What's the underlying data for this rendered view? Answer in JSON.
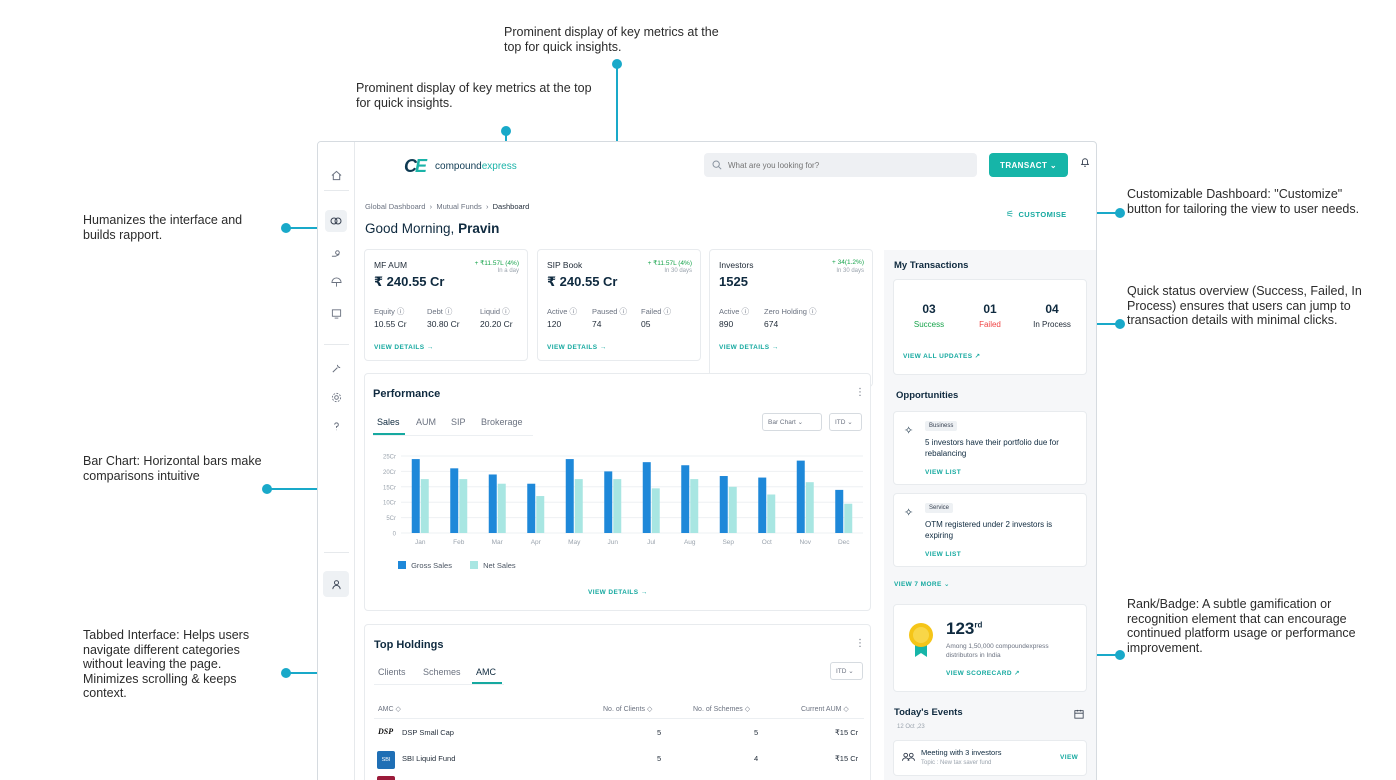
{
  "annotations": {
    "metrics_top": "Prominent display of key metrics at the top for quick insights.",
    "metrics_left": "Prominent display of key metrics at the top for quick insights.",
    "humanize": "Humanizes the interface and builds rapport.",
    "customizable": "Customizable Dashboard: \"Customize\" button for tailoring the view to user needs.",
    "quick_status": "Quick status overview (Success, Failed, In Process) ensures that users can jump to transaction details with minimal clicks.",
    "bar_chart": "Bar Chart: Horizontal bars make comparisons intuitive",
    "rank": "Rank/Badge: A subtle gamification or recognition element that can encourage continued platform usage or performance improvement.",
    "tabbed": "Tabbed Interface: Helps users navigate different categories without leaving the page. Minimizes scrolling & keeps context."
  },
  "header": {
    "brand_prefix": "compound",
    "brand_suffix": "express",
    "search_placeholder": "What are you looking for?",
    "transact_label": "TRANSACT ⌄"
  },
  "breadcrumb": [
    "Global Dashboard",
    "Mutual Funds",
    "Dashboard"
  ],
  "greeting": {
    "prefix": "Good Morning, ",
    "name": "Pravin"
  },
  "customise_label": "CUSTOMISE",
  "kpis": [
    {
      "label": "MF AUM",
      "value": "₹ 240.55 Cr",
      "change": "+ ₹11.57L (4%)",
      "period": "In a day",
      "subs": [
        {
          "label": "Equity ⓘ",
          "value": "10.55 Cr"
        },
        {
          "label": "Debt ⓘ",
          "value": "30.80 Cr"
        },
        {
          "label": "Liquid ⓘ",
          "value": "20.20 Cr"
        }
      ],
      "link": "VIEW DETAILS →"
    },
    {
      "label": "SIP Book",
      "value": "₹ 240.55 Cr",
      "change": "+ ₹11.57L (4%)",
      "period": "In 30 days",
      "subs": [
        {
          "label": "Active ⓘ",
          "value": "120"
        },
        {
          "label": "Paused ⓘ",
          "value": "74"
        },
        {
          "label": "Failed ⓘ",
          "value": "05"
        }
      ],
      "link": "VIEW DETAILS →"
    },
    {
      "label": "Investors",
      "value": "1525",
      "change": "+ 34(1.2%)",
      "period": "In 30 days",
      "subs": [
        {
          "label": "Active ⓘ",
          "value": "890"
        },
        {
          "label": "Zero Holding ⓘ",
          "value": "674"
        }
      ],
      "link": "VIEW DETAILS →"
    }
  ],
  "performance": {
    "title": "Performance",
    "tabs": [
      "Sales",
      "AUM",
      "SIP",
      "Brokerage"
    ],
    "chart_select": "Bar Chart ⌄",
    "period_select": "ITD ⌄",
    "link": "VIEW DETAILS →"
  },
  "chart_data": {
    "type": "bar",
    "categories": [
      "Jan",
      "Feb",
      "Mar",
      "Apr",
      "May",
      "Jun",
      "Jul",
      "Aug",
      "Sep",
      "Oct",
      "Nov",
      "Dec"
    ],
    "series": [
      {
        "name": "Gross Sales",
        "values": [
          24,
          21,
          19,
          16,
          24,
          20,
          23,
          22,
          18.5,
          18,
          23.5,
          14
        ]
      },
      {
        "name": "Net Sales",
        "values": [
          17.5,
          17.5,
          16,
          12,
          17.5,
          17.5,
          14.5,
          17.5,
          15,
          12.5,
          16.5,
          9.5
        ]
      }
    ],
    "yticks": [
      "0",
      "5Cr",
      "10Cr",
      "15Cr",
      "20Cr",
      "25Cr"
    ],
    "ylim": [
      0,
      25
    ],
    "colors": {
      "gross": "#1e88d9",
      "net": "#a8e6e2"
    },
    "legend_position": "bottom-left"
  },
  "holdings": {
    "title": "Top Holdings",
    "tabs": [
      "Clients",
      "Schemes",
      "AMC"
    ],
    "period_select": "ITD ⌄",
    "columns": [
      "AMC ◇",
      "No. of Clients ◇",
      "No. of Schemes ◇",
      "Current AUM ◇"
    ],
    "rows": [
      {
        "logo": "DSP",
        "name": "DSP Small Cap",
        "clients": "5",
        "schemes": "5",
        "aum": "₹15 Cr"
      },
      {
        "logo": "SBI",
        "name": "SBI Liquid Fund",
        "clients": "5",
        "schemes": "4",
        "aum": "₹15 Cr"
      }
    ]
  },
  "transactions": {
    "title": "My Transactions",
    "stats": [
      {
        "count": "03",
        "label": "Success",
        "color": "#16a34a"
      },
      {
        "count": "01",
        "label": "Failed",
        "color": "#ef4444"
      },
      {
        "count": "04",
        "label": "In Process",
        "color": "#1f2a37"
      }
    ],
    "link": "VIEW ALL UPDATES ↗"
  },
  "opportunities": {
    "title": "Opportunities",
    "items": [
      {
        "tag": "Business",
        "text": "5 investors have their portfolio due for rebalancing",
        "link": "VIEW LIST"
      },
      {
        "tag": "Service",
        "text": "OTM registered under 2 investors is expiring",
        "link": "VIEW LIST"
      }
    ],
    "more": "VIEW 7 MORE ⌄"
  },
  "rank": {
    "number": "123",
    "suffix": "rd",
    "text": "Among 1,50,000 compoundexpress distributors in India",
    "link": "VIEW SCORECARD ↗"
  },
  "events": {
    "title": "Today's Events",
    "date": "12 Oct ,23",
    "items": [
      {
        "title": "Meeting with 3 investors",
        "topic": "Topic : New tax saver fund",
        "link": "VIEW"
      }
    ]
  }
}
